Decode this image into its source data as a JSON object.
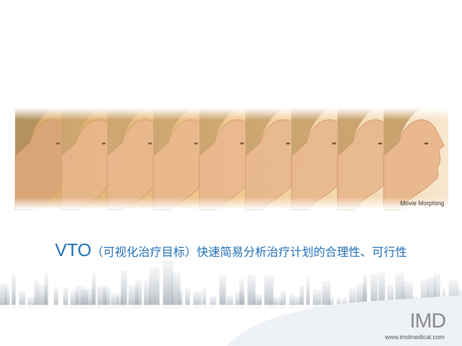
{
  "image_caption": "Movie Morphing",
  "headline": {
    "lead": "VTO",
    "rest": "（可视化治疗目标）快速简易分析治疗计划的合理性、可行性"
  },
  "logo": {
    "brand": "IMD",
    "url": "www.imdmedical.com"
  }
}
